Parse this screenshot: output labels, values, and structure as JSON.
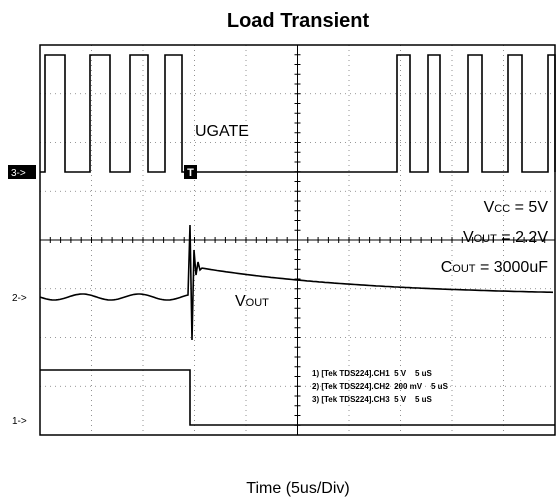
{
  "title": "Load Transient",
  "x_label": "Time (5us/Div)",
  "signal_label": "UGATE",
  "channel_markers": [
    "3->",
    "2->",
    "1->"
  ],
  "trigger_marker": "T",
  "vout_label": {
    "main": "V",
    "sub": "OUT"
  },
  "conditions": [
    {
      "main": "V",
      "sub": "CC",
      "rest": " = 5V"
    },
    {
      "main": "V",
      "sub": "OUT",
      "rest": " = 2.2V"
    },
    {
      "main": "C",
      "sub": "OUT",
      "rest": " = 3000uF"
    }
  ],
  "scope_settings": [
    "1) [Tek TDS224].CH1  5 V    5 uS",
    "2) [Tek TDS224].CH2  200 mV    5 uS",
    "3) [Tek TDS224].CH3  5 V    5 uS"
  ]
}
